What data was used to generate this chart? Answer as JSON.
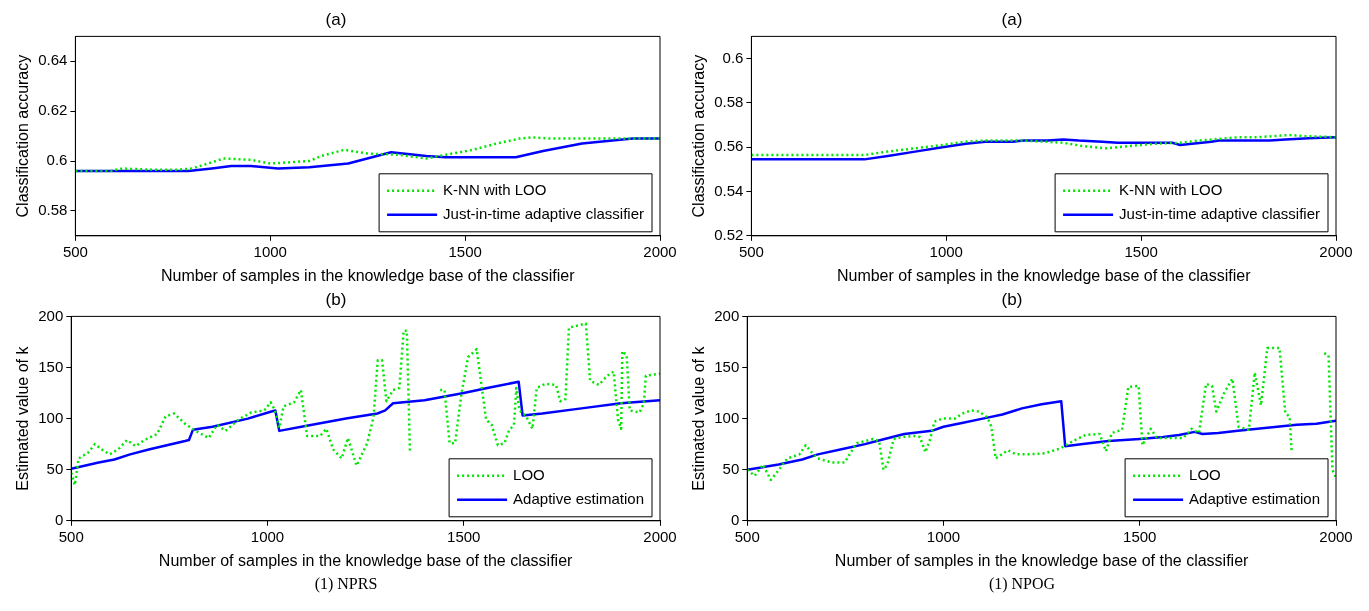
{
  "chart_data": [
    {
      "type": "line",
      "title": "(a)",
      "xlabel": "Number of samples in the knowledge base of the classifier",
      "ylabel": "Classification accuracy",
      "xlim": [
        500,
        2000
      ],
      "xticks": [
        500,
        1000,
        1500,
        2000
      ],
      "ylim": [
        0.57,
        0.65
      ],
      "yticks": [
        0.58,
        0.6,
        0.62,
        0.64
      ],
      "grid": false,
      "legend": "bottom right",
      "marker": "none",
      "series": [
        {
          "name": "K-NN with LOO",
          "color": "#00e600",
          "line_style": "dotted",
          "x": [
            500,
            590,
            620,
            700,
            760,
            800,
            840,
            880,
            950,
            1000,
            1050,
            1100,
            1130,
            1190,
            1250,
            1330,
            1400,
            1450,
            1520,
            1580,
            1640,
            1670,
            1720,
            1900,
            2000
          ],
          "values": [
            0.596,
            0.596,
            0.597,
            0.5965,
            0.5965,
            0.597,
            0.599,
            0.601,
            0.6005,
            0.599,
            0.5995,
            0.6,
            0.602,
            0.6045,
            0.603,
            0.6025,
            0.601,
            0.6025,
            0.6045,
            0.607,
            0.609,
            0.6095,
            0.609,
            0.609,
            0.609
          ]
        },
        {
          "name": "Just-in-time adaptive classifier",
          "color": "#0000ff",
          "line_style": "solid",
          "x": [
            500,
            790,
            850,
            900,
            950,
            1020,
            1100,
            1200,
            1310,
            1400,
            1450,
            1630,
            1700,
            1800,
            1930,
            2000
          ],
          "values": [
            0.596,
            0.596,
            0.597,
            0.598,
            0.598,
            0.597,
            0.5975,
            0.599,
            0.6035,
            0.602,
            0.6015,
            0.6015,
            0.604,
            0.607,
            0.609,
            0.609
          ]
        }
      ]
    },
    {
      "type": "line",
      "title": "(a)",
      "xlabel": "Number of samples in the knowledge base of the classifier",
      "ylabel": "Classification accuracy",
      "xlim": [
        500,
        2000
      ],
      "xticks": [
        500,
        1000,
        1500,
        2000
      ],
      "ylim": [
        0.52,
        0.61
      ],
      "yticks": [
        0.52,
        0.54,
        0.56,
        0.58,
        0.6
      ],
      "grid": false,
      "legend": "bottom right",
      "marker": "none",
      "series": [
        {
          "name": "K-NN with LOO",
          "color": "#00e600",
          "line_style": "dotted",
          "x": [
            500,
            790,
            850,
            920,
            990,
            1050,
            1100,
            1200,
            1300,
            1350,
            1410,
            1470,
            1530,
            1600,
            1650,
            1750,
            1800,
            1880,
            1920,
            2000
          ],
          "values": [
            0.5565,
            0.5565,
            0.558,
            0.5595,
            0.561,
            0.5625,
            0.563,
            0.563,
            0.562,
            0.5605,
            0.5595,
            0.5605,
            0.5615,
            0.562,
            0.563,
            0.5645,
            0.5645,
            0.5655,
            0.565,
            0.5645
          ]
        },
        {
          "name": "Just-in-time adaptive classifier",
          "color": "#0000ff",
          "line_style": "solid",
          "x": [
            500,
            790,
            850,
            920,
            990,
            1050,
            1100,
            1170,
            1200,
            1260,
            1300,
            1340,
            1400,
            1440,
            1580,
            1600,
            1680,
            1700,
            1830,
            1870,
            1930,
            2000
          ],
          "values": [
            0.5545,
            0.5545,
            0.556,
            0.558,
            0.56,
            0.5615,
            0.5625,
            0.5625,
            0.563,
            0.563,
            0.5635,
            0.563,
            0.5625,
            0.562,
            0.562,
            0.561,
            0.5625,
            0.563,
            0.563,
            0.5635,
            0.564,
            0.5645
          ]
        }
      ]
    },
    {
      "type": "line",
      "title": "(b)",
      "xlabel": "Number of samples in the knowledge base of the classifier",
      "ylabel": "Estimated value of k",
      "xlim": [
        500,
        2000
      ],
      "xticks": [
        500,
        1000,
        1500,
        2000
      ],
      "ylim": [
        0,
        200
      ],
      "yticks": [
        0,
        50,
        100,
        150,
        200
      ],
      "grid": false,
      "legend": "bottom right",
      "marker": "none",
      "annotations": [
        "(1) NPRS"
      ],
      "series": [
        {
          "name": "LOO",
          "color": "#00e600",
          "line_style": "dotted",
          "x": [
            500,
            509,
            519,
            544,
            560,
            577,
            598,
            620,
            642,
            664,
            686,
            719,
            740,
            762,
            790,
            817,
            850,
            872,
            893,
            926,
            959,
            992,
            1008,
            1019,
            1030,
            1041,
            1068,
            1085,
            1101,
            1134,
            1150,
            1167,
            1189,
            1205,
            1227,
            1243,
            1254,
            1270,
            1281,
            1292,
            1303,
            1320,
            1336,
            1347,
            1355,
            1363,
            1395,
            1440,
            1451,
            1464,
            1478,
            1494,
            1511,
            1533,
            1557,
            1571,
            1587,
            1604,
            1615,
            1628,
            1634,
            1642,
            1658,
            1675,
            1686,
            1708,
            1735,
            1746,
            1759,
            1768,
            1811,
            1822,
            1844,
            1866,
            1882,
            1893,
            1901,
            1904,
            1915,
            1923,
            1948,
            1959,
            1964,
            2000
          ],
          "values": [
            47,
            35,
            61,
            67,
            75,
            70,
            65,
            70,
            79,
            73,
            79,
            85,
            102,
            105,
            95,
            88,
            81,
            94,
            88,
            99,
            106,
            108,
            116,
            108,
            91,
            112,
            116,
            128,
            83,
            83,
            90,
            70,
            61,
            81,
            54,
            67,
            76,
            101,
            157,
            157,
            117,
            128,
            130,
            186,
            186,
            67,
            null,
            128,
            128,
            76,
            76,
            124,
            160,
            168,
            99,
            94,
            74,
            76,
            88,
            94,
            130,
            108,
            103,
            90,
            130,
            134,
            133,
            117,
            119,
            189,
            193,
            137,
            133,
            142,
            146,
            99,
            90,
            166,
            162,
            108,
            106,
            115,
            142,
            144
          ]
        },
        {
          "name": "Adaptive estimation",
          "color": "#0000ff",
          "line_style": "solid",
          "x": [
            500,
            570,
            610,
            650,
            700,
            790,
            800,
            810,
            860,
            950,
            1010,
            1020,
            1030,
            1100,
            1200,
            1280,
            1300,
            1320,
            1400,
            1500,
            1560,
            1640,
            1650,
            1700,
            1800,
            1900,
            2000
          ],
          "values": [
            51,
            57,
            60,
            65,
            70,
            78,
            79,
            89,
            92,
            100,
            107,
            108,
            88,
            93,
            100,
            105,
            108,
            115,
            118,
            125,
            130,
            136,
            103,
            105,
            110,
            115,
            118
          ]
        }
      ]
    },
    {
      "type": "line",
      "title": "(b)",
      "xlabel": "Number of samples in the knowledge base of the classifier",
      "ylabel": "Estimated value of k",
      "xlim": [
        500,
        2000
      ],
      "xticks": [
        500,
        1000,
        1500,
        2000
      ],
      "ylim": [
        0,
        200
      ],
      "yticks": [
        0,
        50,
        100,
        150,
        200
      ],
      "grid": false,
      "legend": "bottom right",
      "marker": "none",
      "annotations": [
        "(1) NPOG"
      ],
      "series": [
        {
          "name": "LOO",
          "color": "#00e600",
          "line_style": "dotted",
          "x": [
            500,
            519,
            540,
            560,
            581,
            602,
            633,
            649,
            664,
            680,
            716,
            748,
            779,
            800,
            820,
            836,
            847,
            857,
            873,
            893,
            925,
            940,
            954,
            966,
            977,
            997,
            1029,
            1049,
            1070,
            1091,
            1112,
            1122,
            1133,
            1164,
            1185,
            1216,
            1258,
            1299,
            1330,
            1362,
            1398,
            1414,
            1429,
            1455,
            1471,
            1497,
            1507,
            1528,
            1544,
            1611,
            1632,
            1651,
            1669,
            1684,
            1695,
            1715,
            1736,
            1752,
            1778,
            1793,
            1809,
            1825,
            1856,
            1871,
            1882,
            1887,
            1910,
            1970,
            1981,
            1991,
            2000
          ],
          "values": [
            50,
            44,
            55,
            40,
            50,
            61,
            65,
            74,
            67,
            61,
            57,
            57,
            76,
            78,
            80,
            78,
            50,
            55,
            80,
            82,
            83,
            82,
            67,
            80,
            97,
            100,
            100,
            105,
            108,
            107,
            101,
            92,
            61,
            69,
            65,
            65,
            66,
            71,
            78,
            84,
            85,
            68,
            86,
            89,
            131,
            132,
            74,
            90,
            81,
            81,
            90,
            86,
            134,
            132,
            107,
            125,
            139,
            92,
            89,
            145,
            113,
            169,
            169,
            105,
            102,
            67,
            null,
            164,
            162,
            50,
            42
          ]
        },
        {
          "name": "Adaptive estimation",
          "color": "#0000ff",
          "line_style": "solid",
          "x": [
            500,
            580,
            640,
            680,
            740,
            800,
            850,
            900,
            970,
            1000,
            1050,
            1100,
            1150,
            1200,
            1250,
            1300,
            1310,
            1350,
            1420,
            1500,
            1560,
            1600,
            1640,
            1660,
            1700,
            1750,
            1800,
            1850,
            1900,
            1950,
            2000
          ],
          "values": [
            50,
            55,
            60,
            65,
            70,
            75,
            80,
            85,
            88,
            92,
            96,
            100,
            104,
            110,
            114,
            117,
            73,
            75,
            78,
            80,
            82,
            84,
            87,
            85,
            86,
            88,
            90,
            92,
            94,
            95,
            98
          ]
        }
      ]
    }
  ]
}
